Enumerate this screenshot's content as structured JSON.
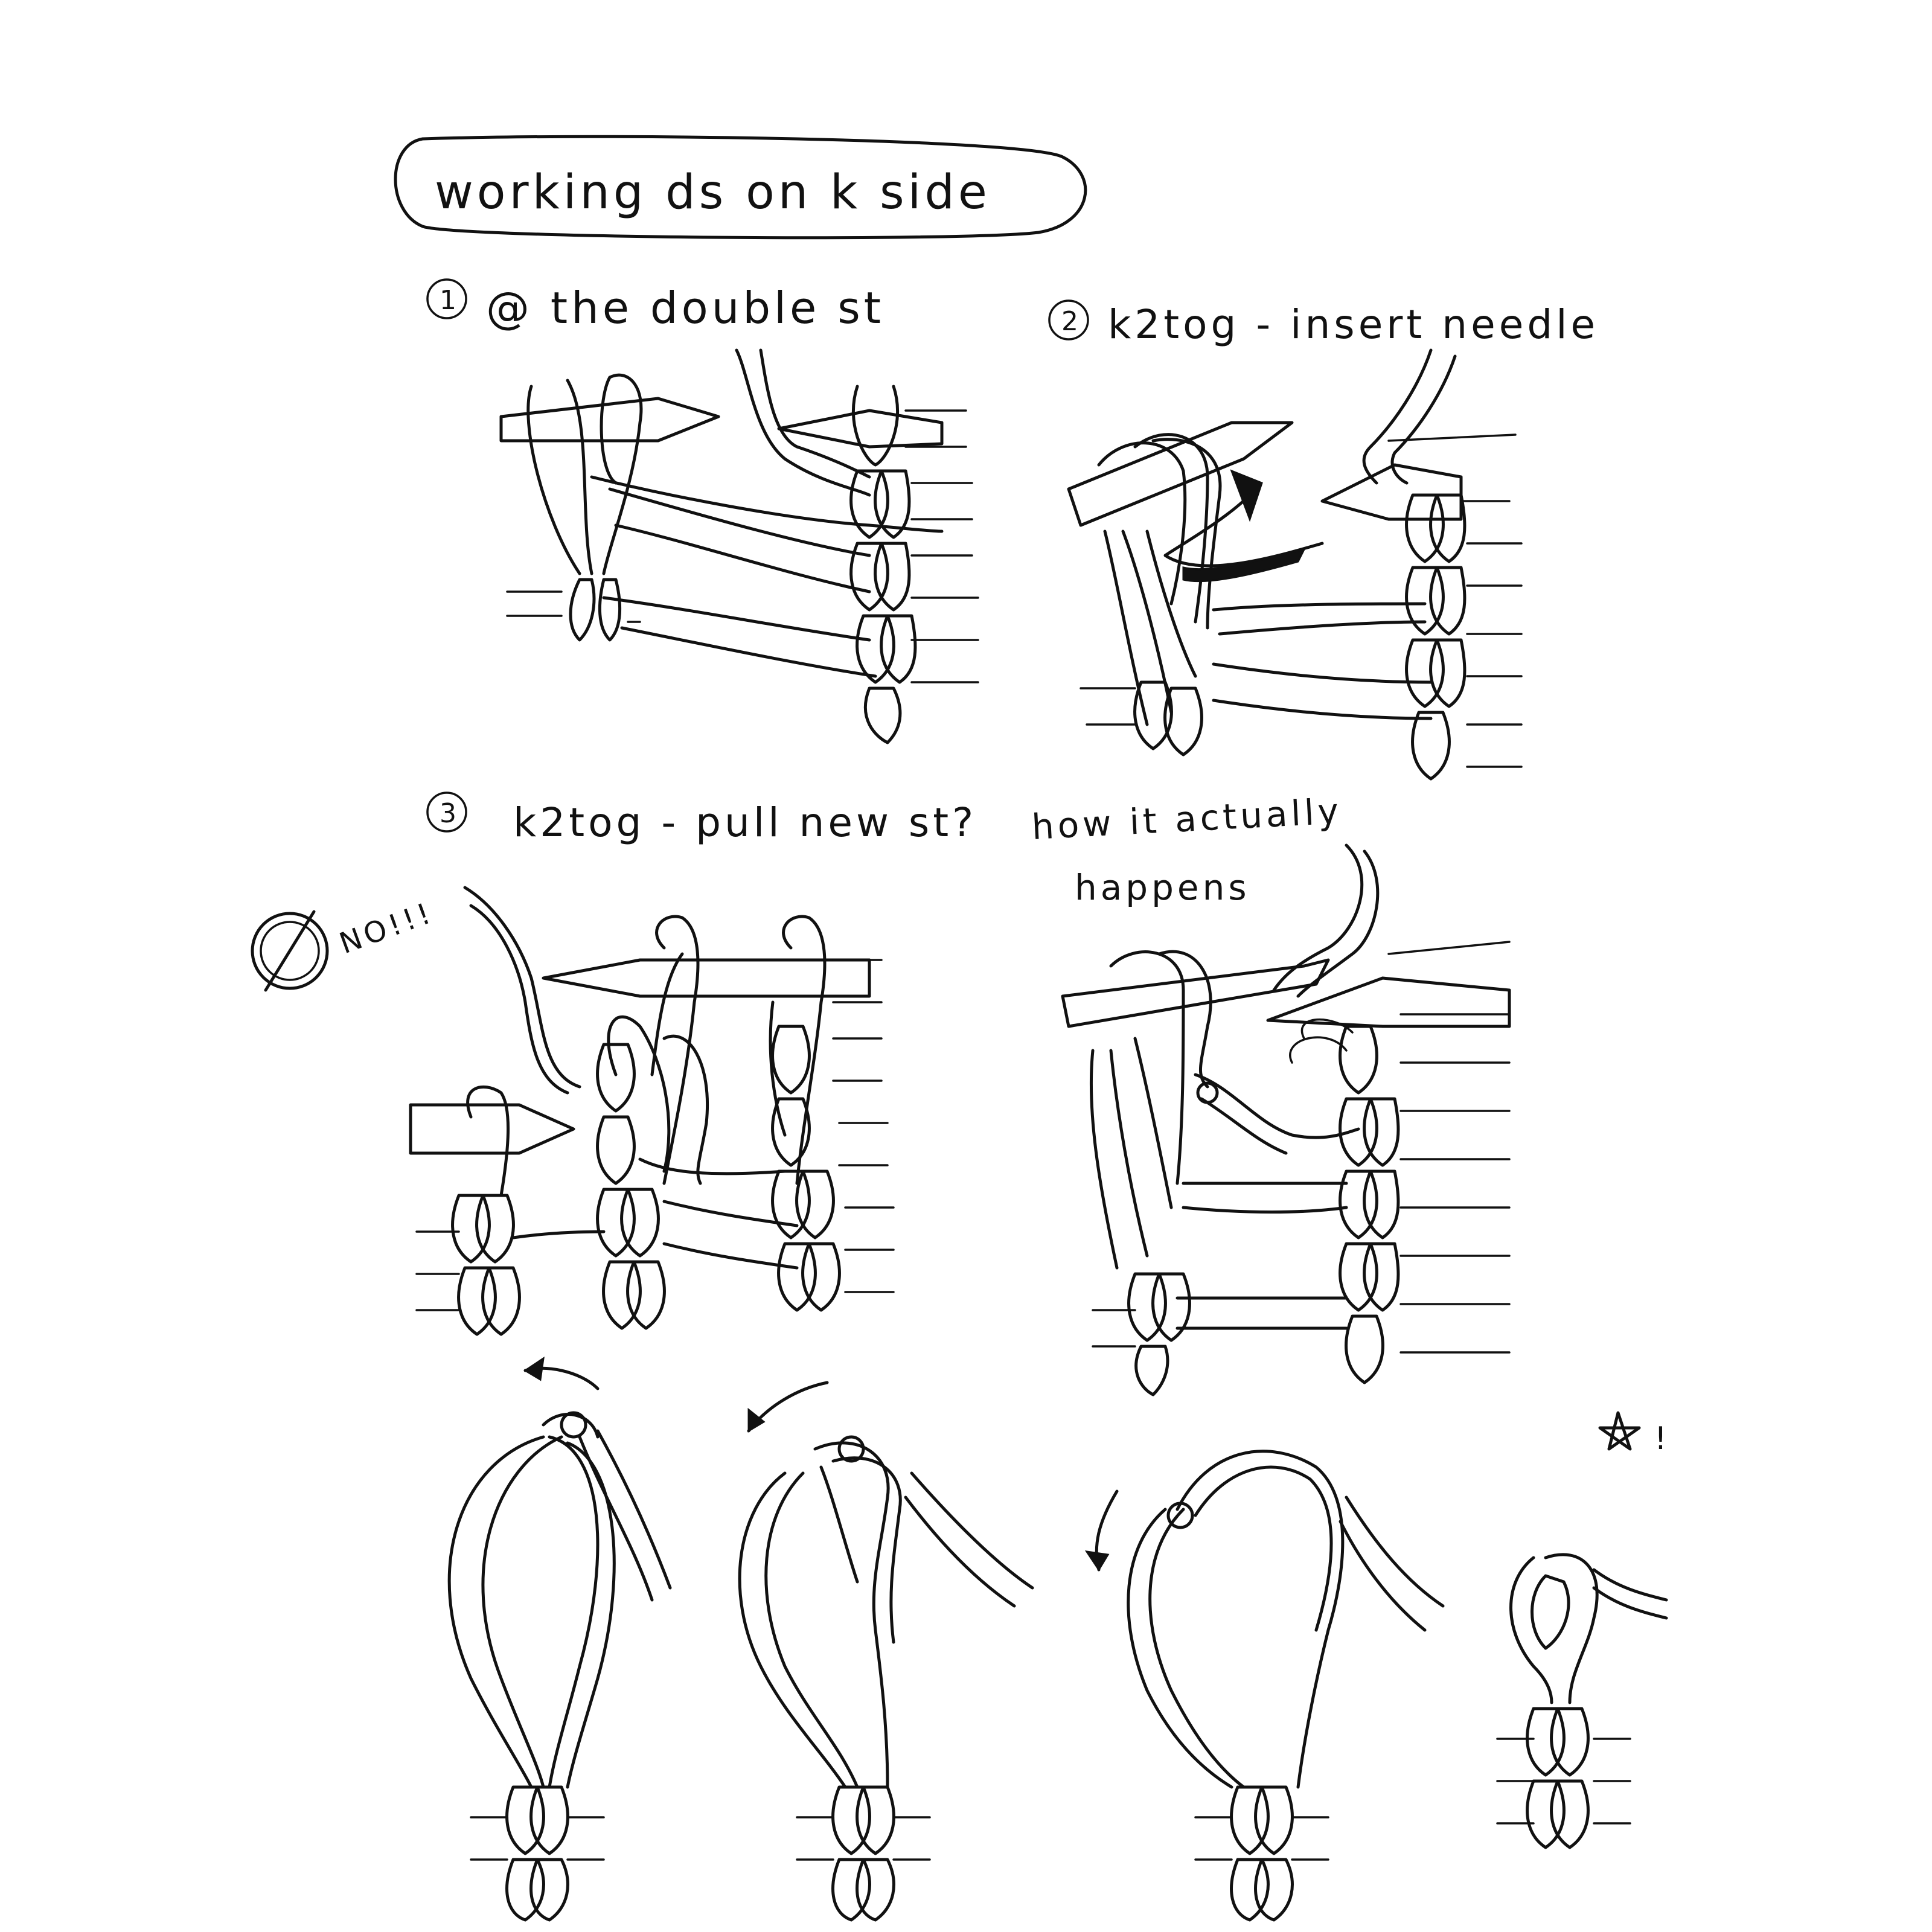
{
  "title": "working ds on k side",
  "panels": [
    {
      "number": "1",
      "caption": "@ the double st"
    },
    {
      "number": "2",
      "caption": "k2tog - insert needle"
    },
    {
      "number": "3",
      "caption": "k2tog - pull new st?"
    },
    {
      "number": "",
      "caption_line1": "how it actually",
      "caption_line2": "happens"
    }
  ],
  "rejection_note": "NO!!!",
  "final_mark": "!"
}
